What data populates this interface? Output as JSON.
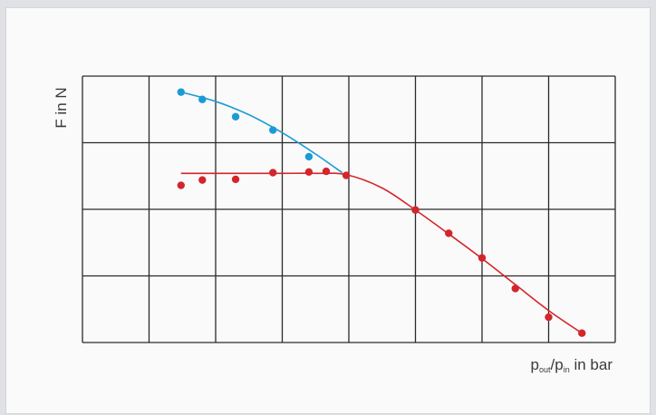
{
  "chart_data": {
    "type": "scatter",
    "title": "",
    "ylabel": "F in N",
    "xlabel": {
      "var1": "p",
      "sub1": "out",
      "sep": "/",
      "var2": "p",
      "sub2": "in",
      "suffix": " in bar"
    },
    "xlim": [
      0,
      8
    ],
    "ylim": [
      0,
      4
    ],
    "grid": true,
    "tick_labels": false,
    "legend": "none",
    "colors": {
      "series_blue": "#1a9bd6",
      "series_red": "#d4252b",
      "grid": "#2a2a2a"
    },
    "series": [
      {
        "color": "#1a9bd6",
        "points": [
          [
            1.48,
            3.76
          ],
          [
            1.8,
            3.65
          ],
          [
            2.3,
            3.39
          ],
          [
            2.86,
            3.19
          ],
          [
            3.4,
            2.79
          ]
        ],
        "fit": [
          [
            1.48,
            3.76
          ],
          [
            2.0,
            3.62
          ],
          [
            2.5,
            3.42
          ],
          [
            3.0,
            3.15
          ],
          [
            3.5,
            2.83
          ],
          [
            3.9,
            2.55
          ]
        ]
      },
      {
        "color": "#d4252b",
        "points": [
          [
            1.48,
            2.36
          ],
          [
            1.8,
            2.44
          ],
          [
            2.3,
            2.45
          ],
          [
            2.86,
            2.55
          ],
          [
            3.4,
            2.56
          ],
          [
            3.66,
            2.57
          ],
          [
            3.96,
            2.51
          ],
          [
            5.0,
            1.99
          ],
          [
            5.5,
            1.64
          ],
          [
            6.0,
            1.27
          ],
          [
            6.5,
            0.81
          ],
          [
            7.0,
            0.38
          ],
          [
            7.5,
            0.14
          ]
        ],
        "fit": [
          [
            1.48,
            2.54
          ],
          [
            2.0,
            2.54
          ],
          [
            2.5,
            2.54
          ],
          [
            3.0,
            2.54
          ],
          [
            3.5,
            2.54
          ],
          [
            3.96,
            2.52
          ],
          [
            4.5,
            2.32
          ],
          [
            5.0,
            1.99
          ],
          [
            5.5,
            1.63
          ],
          [
            6.0,
            1.26
          ],
          [
            6.5,
            0.87
          ],
          [
            7.0,
            0.48
          ],
          [
            7.5,
            0.14
          ]
        ]
      }
    ]
  }
}
